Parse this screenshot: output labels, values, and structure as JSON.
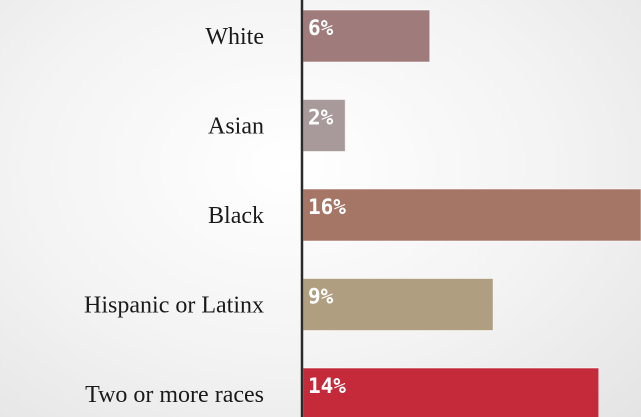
{
  "chart_data": {
    "type": "bar",
    "orientation": "horizontal",
    "categories": [
      "White",
      "Asian",
      "Black",
      "Hispanic or Latinx",
      "Two or more races"
    ],
    "values": [
      6,
      2,
      16,
      9,
      14
    ],
    "data_labels": [
      "6%",
      "2%",
      "16%",
      "9%",
      "14%"
    ],
    "colors": [
      "#a07b7b",
      "#a89a9a",
      "#a57565",
      "#b09e80",
      "#c42a3a"
    ],
    "xlim": [
      0,
      16
    ],
    "grid": false,
    "legend": "none",
    "title": "",
    "xlabel": "",
    "ylabel": ""
  }
}
